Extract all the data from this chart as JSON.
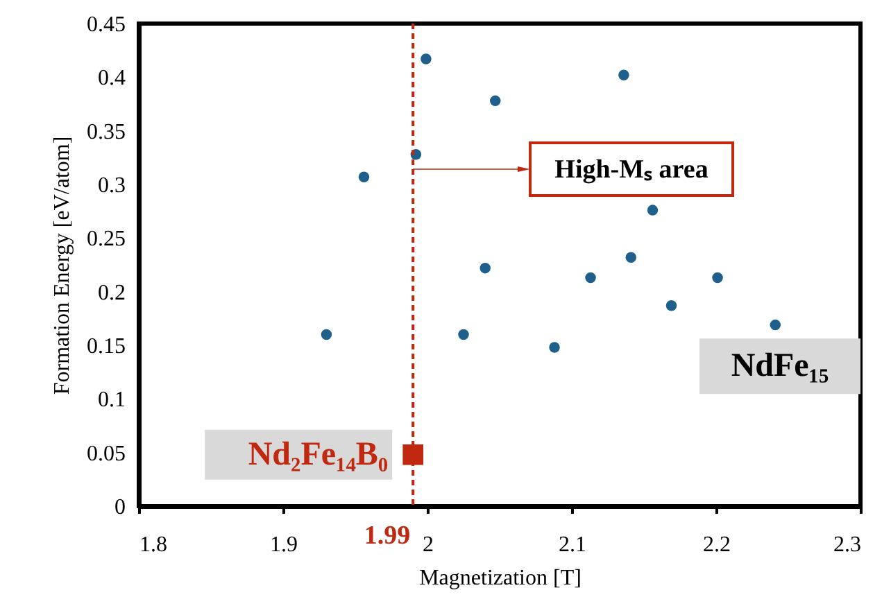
{
  "chart_data": {
    "type": "scatter",
    "xlabel": "Magnetization [T]",
    "ylabel": "Formation Energy [eV/atom]",
    "xlim": [
      1.8,
      2.3
    ],
    "xticks": [
      1.8,
      1.9,
      2,
      2.1,
      2.2,
      2.3
    ],
    "ylim": [
      0,
      0.45
    ],
    "yticks": [
      0,
      0.05,
      0.1,
      0.15,
      0.2,
      0.25,
      0.3,
      0.35,
      0.4,
      0.45
    ],
    "grid": false,
    "series": [
      {
        "name": "NdFe₁₅",
        "color": "#1f5f8b",
        "marker": "circle",
        "x": [
          1.93,
          1.956,
          1.992,
          1.999,
          2.047,
          2.04,
          2.025,
          2.136,
          2.156,
          2.113,
          2.141,
          2.201,
          2.169,
          2.241,
          2.088
        ],
        "values": [
          0.16,
          0.307,
          0.328,
          0.417,
          0.378,
          0.222,
          0.16,
          0.402,
          0.276,
          0.213,
          0.232,
          0.213,
          0.187,
          0.169,
          0.148
        ]
      },
      {
        "name": "Nd₂Fe₁₄B₀",
        "color": "#c0280f",
        "marker": "square",
        "x": [
          1.99
        ],
        "values": [
          0.048
        ]
      }
    ],
    "ref_lines": [
      {
        "axis": "x",
        "value": 1.99,
        "label": "1.99",
        "color": "#c0280f",
        "line_style": "dashed"
      }
    ],
    "annotations": [
      "High-Mₛ area"
    ]
  }
}
